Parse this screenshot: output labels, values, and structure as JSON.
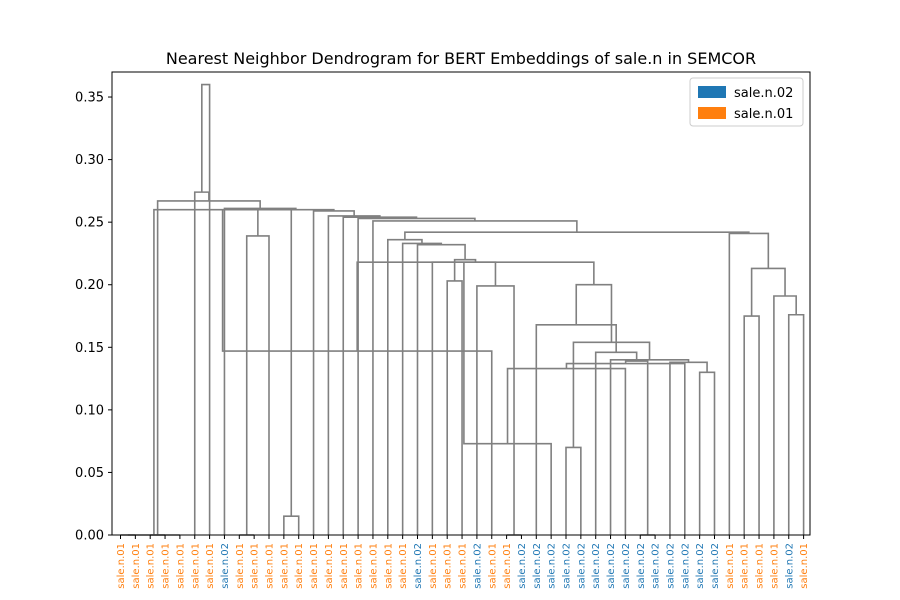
{
  "chart_data": {
    "type": "dendrogram",
    "title": "Nearest Neighbor Dendrogram for BERT Embeddings of sale.n in SEMCOR",
    "xlabel": "",
    "ylabel": "",
    "ylim": [
      0,
      0.37
    ],
    "yticks": [
      "0.00",
      "0.05",
      "0.10",
      "0.15",
      "0.20",
      "0.25",
      "0.30",
      "0.35"
    ],
    "legend": {
      "position": "top-right",
      "entries": [
        {
          "label": "sale.n.02",
          "color": "#1f77b4"
        },
        {
          "label": "sale.n.01",
          "color": "#ff7f0e"
        }
      ]
    },
    "link_color": "#808080",
    "leaves": [
      "sale.n.01",
      "sale.n.01",
      "sale.n.01",
      "sale.n.01",
      "sale.n.01",
      "sale.n.01",
      "sale.n.01",
      "sale.n.02",
      "sale.n.01",
      "sale.n.01",
      "sale.n.01",
      "sale.n.01",
      "sale.n.01",
      "sale.n.01",
      "sale.n.01",
      "sale.n.01",
      "sale.n.01",
      "sale.n.01",
      "sale.n.01",
      "sale.n.01",
      "sale.n.02",
      "sale.n.01",
      "sale.n.01",
      "sale.n.01",
      "sale.n.02",
      "sale.n.01",
      "sale.n.01",
      "sale.n.02",
      "sale.n.02",
      "sale.n.02",
      "sale.n.02",
      "sale.n.02",
      "sale.n.02",
      "sale.n.02",
      "sale.n.02",
      "sale.n.02",
      "sale.n.02",
      "sale.n.02",
      "sale.n.02",
      "sale.n.02",
      "sale.n.02",
      "sale.n.01",
      "sale.n.01",
      "sale.n.01",
      "sale.n.01",
      "sale.n.02",
      "sale.n.01"
    ],
    "links": [
      {
        "left": 1,
        "right": 2,
        "height": 0.0
      },
      {
        "left": 3,
        "right": 4,
        "height": 0.0
      },
      {
        "left": 48,
        "right": 5,
        "height": 0.0
      },
      {
        "left": 9,
        "right": 10,
        "height": 0.0
      },
      {
        "left": 12,
        "right": 13,
        "height": 0.015
      },
      {
        "left": 11,
        "right": 51,
        "height": 0.239
      },
      {
        "left": 50,
        "right": 52,
        "height": 0.26
      },
      {
        "left": 27,
        "right": 28,
        "height": 0.0
      },
      {
        "left": 26,
        "right": 54,
        "height": 0.147
      },
      {
        "left": 25,
        "right": 55,
        "height": 0.199
      },
      {
        "left": 23,
        "right": 24,
        "height": 0.203
      },
      {
        "left": 22,
        "right": 57,
        "height": 0.218
      },
      {
        "left": 31,
        "right": 32,
        "height": 0.07
      },
      {
        "left": 30,
        "right": 59,
        "height": 0.073
      },
      {
        "left": 36,
        "right": 37,
        "height": 0.0
      },
      {
        "left": 35,
        "right": 61,
        "height": 0.133
      },
      {
        "left": 40,
        "right": 41,
        "height": 0.13
      },
      {
        "left": 39,
        "right": 63,
        "height": 0.137
      },
      {
        "left": 38,
        "right": 64,
        "height": 0.138
      },
      {
        "left": 62,
        "right": 65,
        "height": 0.139
      },
      {
        "left": 34,
        "right": 66,
        "height": 0.14
      },
      {
        "left": 33,
        "right": 67,
        "height": 0.146
      },
      {
        "left": 60,
        "right": 68,
        "height": 0.154
      },
      {
        "left": 29,
        "right": 69,
        "height": 0.168
      },
      {
        "left": 70,
        "right": 71,
        "height": 0.2
      },
      {
        "left": 56,
        "right": 72,
        "height": 0.218
      },
      {
        "left": 58,
        "right": 73,
        "height": 0.22
      },
      {
        "left": 21,
        "right": 74,
        "height": 0.232
      },
      {
        "left": 20,
        "right": 75,
        "height": 0.233
      },
      {
        "left": 19,
        "right": 76,
        "height": 0.236
      },
      {
        "left": 43,
        "right": 44,
        "height": 0.175
      },
      {
        "left": 46,
        "right": 47,
        "height": 0.176
      },
      {
        "left": 45,
        "right": 79,
        "height": 0.191
      },
      {
        "left": 78,
        "right": 80,
        "height": 0.213
      },
      {
        "left": 42,
        "right": 81,
        "height": 0.241
      },
      {
        "left": 77,
        "right": 82,
        "height": 0.242
      },
      {
        "left": 18,
        "right": 83,
        "height": 0.251
      },
      {
        "left": 17,
        "right": 84,
        "height": 0.253
      },
      {
        "left": 16,
        "right": 85,
        "height": 0.254
      },
      {
        "left": 15,
        "right": 86,
        "height": 0.255
      },
      {
        "left": 14,
        "right": 87,
        "height": 0.259
      },
      {
        "left": 53,
        "right": 88,
        "height": 0.26
      },
      {
        "left": 8,
        "right": 89,
        "height": 0.261
      },
      {
        "left": 49,
        "right": 90,
        "height": 0.267
      },
      {
        "left": 6,
        "right": 91,
        "height": 0.274
      },
      {
        "left": 7,
        "right": 92,
        "height": 0.36
      }
    ]
  }
}
